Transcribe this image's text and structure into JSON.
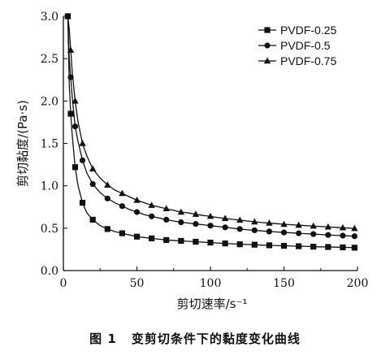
{
  "chart_data": {
    "type": "line",
    "xlabel": "剪切速率/s⁻¹",
    "ylabel": "剪切黏度/(Pa·s)",
    "xlim": [
      0,
      200
    ],
    "ylim": [
      0,
      3.0
    ],
    "x_ticks": [
      "0",
      "50",
      "100",
      "150",
      "200"
    ],
    "y_ticks": [
      "0.0",
      "0.5",
      "1.0",
      "1.5",
      "2.0",
      "2.5",
      "3.0"
    ],
    "legend_position": "top-right",
    "grid": false,
    "x": [
      3,
      4,
      5,
      6,
      8,
      10,
      13,
      16,
      20,
      25,
      30,
      35,
      40,
      45,
      50,
      55,
      60,
      65,
      70,
      75,
      80,
      85,
      90,
      95,
      100,
      105,
      110,
      115,
      120,
      125,
      130,
      135,
      140,
      145,
      150,
      155,
      160,
      165,
      170,
      175,
      180,
      185,
      190,
      195,
      198
    ],
    "series": [
      {
        "name": "PVDF-0.25",
        "marker": "square",
        "values": [
          3.0,
          2.2,
          1.85,
          1.6,
          1.22,
          1.0,
          0.8,
          0.68,
          0.6,
          0.53,
          0.49,
          0.46,
          0.44,
          0.42,
          0.4,
          0.39,
          0.38,
          0.37,
          0.36,
          0.355,
          0.35,
          0.345,
          0.34,
          0.335,
          0.33,
          0.325,
          0.32,
          0.315,
          0.31,
          0.308,
          0.305,
          0.3,
          0.298,
          0.295,
          0.292,
          0.29,
          0.287,
          0.285,
          0.282,
          0.28,
          0.278,
          0.276,
          0.274,
          0.272,
          0.27
        ]
      },
      {
        "name": "PVDF-0.5",
        "marker": "circle",
        "values": [
          3.0,
          2.5,
          2.28,
          2.05,
          1.7,
          1.52,
          1.3,
          1.15,
          1.02,
          0.92,
          0.85,
          0.8,
          0.76,
          0.72,
          0.69,
          0.66,
          0.64,
          0.62,
          0.6,
          0.585,
          0.57,
          0.56,
          0.55,
          0.54,
          0.53,
          0.52,
          0.51,
          0.5,
          0.49,
          0.482,
          0.475,
          0.468,
          0.461,
          0.455,
          0.45,
          0.445,
          0.44,
          0.435,
          0.43,
          0.425,
          0.42,
          0.416,
          0.412,
          0.408,
          0.405
        ]
      },
      {
        "name": "PVDF-0.75",
        "marker": "triangle",
        "values": [
          3.0,
          2.85,
          2.6,
          2.35,
          2.0,
          1.75,
          1.5,
          1.35,
          1.2,
          1.09,
          1.01,
          0.95,
          0.91,
          0.87,
          0.83,
          0.8,
          0.77,
          0.75,
          0.73,
          0.71,
          0.69,
          0.68,
          0.665,
          0.65,
          0.64,
          0.625,
          0.615,
          0.605,
          0.595,
          0.585,
          0.575,
          0.567,
          0.56,
          0.553,
          0.546,
          0.54,
          0.535,
          0.53,
          0.525,
          0.52,
          0.515,
          0.51,
          0.505,
          0.5,
          0.497
        ]
      }
    ],
    "marker_stride": 2
  },
  "caption": {
    "number": "图 1",
    "text": "变剪切条件下的黏度变化曲线"
  }
}
